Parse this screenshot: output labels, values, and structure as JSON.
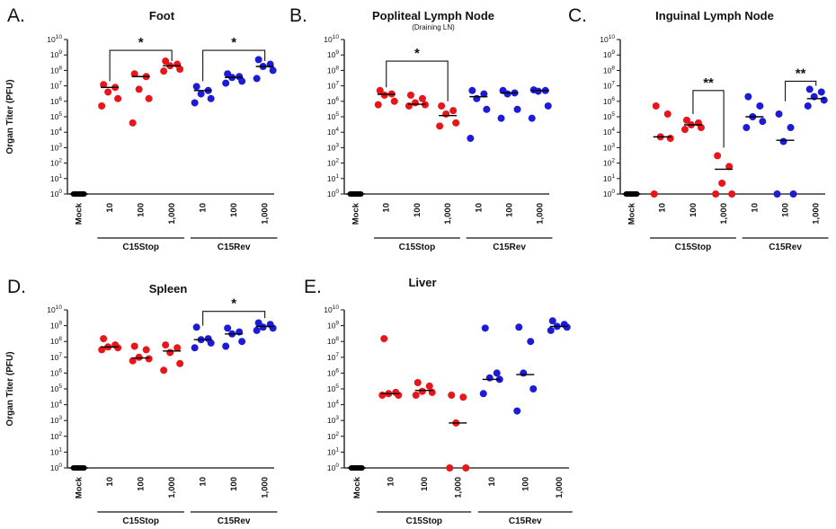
{
  "figure": {
    "colors": {
      "mock": "#000000",
      "C15Stop": "#e8161b",
      "C15Rev": "#1c1cd6",
      "axis": "#111111",
      "median": "#000000"
    },
    "categories": [
      "Mock",
      "10",
      "100",
      "1,000",
      "10",
      "100",
      "1,000"
    ],
    "groups": [
      "C15Stop",
      "C15Rev"
    ],
    "y_axis_label": "Organ Titer (PFU)"
  },
  "chart_data": [
    {
      "type": "scatter",
      "letter": "A.",
      "title": "Foot",
      "subtitle": "",
      "ylabel": "Organ Titer (PFU)",
      "yscale": "log10",
      "ylim": [
        1,
        10000000000
      ],
      "yticks": [
        "10^0",
        "10^1",
        "10^2",
        "10^3",
        "10^4",
        "10^5",
        "10^6",
        "10^7",
        "10^8",
        "10^9",
        "10^10"
      ],
      "categories": [
        "Mock",
        "10",
        "100",
        "1,000",
        "10",
        "100",
        "1,000"
      ],
      "groups": [
        {
          "name": "C15Stop",
          "from": 1,
          "to": 3
        },
        {
          "name": "C15Rev",
          "from": 4,
          "to": 6
        }
      ],
      "series": [
        {
          "name": "Mock",
          "color": "mock",
          "cat": 0,
          "points": [
            1,
            1,
            1,
            1,
            1
          ],
          "median": 1
        },
        {
          "name": "C15Stop 10",
          "color": "C15Stop",
          "cat": 1,
          "points": [
            12000000,
            8000000,
            4000000,
            1500000,
            500000
          ],
          "median": 8000000
        },
        {
          "name": "C15Stop 100",
          "color": "C15Stop",
          "cat": 2,
          "points": [
            60000000,
            40000000,
            6000000,
            1500000,
            40000
          ],
          "median": 40000000
        },
        {
          "name": "C15Stop 1,000",
          "color": "C15Stop",
          "cat": 3,
          "points": [
            400000000,
            250000000,
            200000000,
            120000000,
            90000000
          ],
          "median": 200000000
        },
        {
          "name": "C15Rev 10",
          "color": "C15Rev",
          "cat": 4,
          "points": [
            9000000,
            5000000,
            3000000,
            1500000,
            800000
          ],
          "median": 5000000
        },
        {
          "name": "C15Rev 100",
          "color": "C15Rev",
          "cat": 5,
          "points": [
            60000000,
            40000000,
            35000000,
            20000000,
            15000000
          ],
          "median": 35000000
        },
        {
          "name": "C15Rev 1,000",
          "color": "C15Rev",
          "cat": 6,
          "points": [
            500000000,
            250000000,
            180000000,
            100000000,
            30000000
          ],
          "median": 180000000
        }
      ],
      "annotations": [
        {
          "from": 1,
          "to": 3,
          "label": "*",
          "y": 2000000000,
          "drop_left": 20000000,
          "drop_right": 400000000
        },
        {
          "from": 4,
          "to": 6,
          "label": "*",
          "y": 2000000000,
          "drop_left": 20000000,
          "drop_right": 400000000
        }
      ]
    },
    {
      "type": "scatter",
      "letter": "B.",
      "title": "Popliteal Lymph Node",
      "subtitle": "(Draining LN)",
      "ylabel": "",
      "yscale": "log10",
      "ylim": [
        1,
        10000000000
      ],
      "yticks": [
        "10^0",
        "10^1",
        "10^2",
        "10^3",
        "10^4",
        "10^5",
        "10^6",
        "10^7",
        "10^8",
        "10^9",
        "10^10"
      ],
      "categories": [
        "Mock",
        "10",
        "100",
        "1,000",
        "10",
        "100",
        "1,000"
      ],
      "groups": [
        {
          "name": "C15Stop",
          "from": 1,
          "to": 3
        },
        {
          "name": "C15Rev",
          "from": 4,
          "to": 6
        }
      ],
      "series": [
        {
          "name": "Mock",
          "color": "mock",
          "cat": 0,
          "points": [
            1,
            1,
            1,
            1,
            1
          ],
          "median": 1
        },
        {
          "name": "C15Stop 10",
          "color": "C15Stop",
          "cat": 1,
          "points": [
            5000000,
            3000000,
            2500000,
            1000000,
            600000
          ],
          "median": 2800000
        },
        {
          "name": "C15Stop 100",
          "color": "C15Stop",
          "cat": 2,
          "points": [
            2500000,
            1500000,
            800000,
            600000,
            500000
          ],
          "median": 650000
        },
        {
          "name": "C15Stop 1,000",
          "color": "C15Stop",
          "cat": 3,
          "points": [
            500000,
            250000,
            150000,
            40000,
            25000
          ],
          "median": 120000
        },
        {
          "name": "C15Rev 10",
          "color": "C15Rev",
          "cat": 4,
          "points": [
            5000000,
            3000000,
            1500000,
            300000,
            4000
          ],
          "median": 2000000
        },
        {
          "name": "C15Rev 100",
          "color": "C15Rev",
          "cat": 5,
          "points": [
            5000000,
            3500000,
            3000000,
            300000,
            80000
          ],
          "median": 3500000
        },
        {
          "name": "C15Rev 1,000",
          "color": "C15Rev",
          "cat": 6,
          "points": [
            5500000,
            5000000,
            4500000,
            500000,
            80000
          ],
          "median": 5000000
        }
      ],
      "annotations": [
        {
          "from": 1,
          "to": 3,
          "label": "*",
          "y": 400000000,
          "drop_left": 8000000,
          "drop_right": 1000000
        }
      ]
    },
    {
      "type": "scatter",
      "letter": "C.",
      "title": "Inguinal Lymph Node",
      "subtitle": "",
      "ylabel": "",
      "yscale": "log10",
      "ylim": [
        1,
        10000000000
      ],
      "yticks": [
        "10^0",
        "10^1",
        "10^2",
        "10^3",
        "10^4",
        "10^5",
        "10^6",
        "10^7",
        "10^8",
        "10^9",
        "10^10"
      ],
      "categories": [
        "Mock",
        "10",
        "100",
        "1,000",
        "10",
        "100",
        "1,000"
      ],
      "groups": [
        {
          "name": "C15Stop",
          "from": 1,
          "to": 3
        },
        {
          "name": "C15Rev",
          "from": 4,
          "to": 6
        }
      ],
      "series": [
        {
          "name": "Mock",
          "color": "mock",
          "cat": 0,
          "points": [
            1,
            1,
            1,
            1,
            1
          ],
          "median": 1
        },
        {
          "name": "C15Stop 10",
          "color": "C15Stop",
          "cat": 1,
          "points": [
            500000,
            150000,
            5000,
            4000,
            1
          ],
          "median": 5000
        },
        {
          "name": "C15Stop 100",
          "color": "C15Stop",
          "cat": 2,
          "points": [
            60000,
            40000,
            30000,
            20000,
            15000
          ],
          "median": 30000
        },
        {
          "name": "C15Stop 1,000",
          "color": "C15Stop",
          "cat": 3,
          "points": [
            300,
            60,
            5,
            1,
            1
          ],
          "median": 40
        },
        {
          "name": "C15Rev 10",
          "color": "C15Rev",
          "cat": 4,
          "points": [
            2000000,
            500000,
            100000,
            50000,
            20000
          ],
          "median": 100000
        },
        {
          "name": "C15Rev 100",
          "color": "C15Rev",
          "cat": 5,
          "points": [
            150000,
            20000,
            2500,
            1,
            1
          ],
          "median": 3000
        },
        {
          "name": "C15Rev 1,000",
          "color": "C15Rev",
          "cat": 6,
          "points": [
            6000000,
            4000000,
            2000000,
            1200000,
            500000
          ],
          "median": 1500000
        }
      ],
      "annotations": [
        {
          "from": 2,
          "to": 3,
          "label": "**",
          "y": 5000000,
          "drop_left": 150000,
          "drop_right": 1000
        },
        {
          "from": 5,
          "to": 6,
          "label": "**",
          "y": 20000000,
          "drop_left": 1000000,
          "drop_right": 10000000
        }
      ]
    },
    {
      "type": "scatter",
      "letter": "D.",
      "title": "Spleen",
      "subtitle": "",
      "ylabel": "Organ Titer (PFU)",
      "yscale": "log10",
      "ylim": [
        1,
        10000000000
      ],
      "yticks": [
        "10^0",
        "10^1",
        "10^2",
        "10^3",
        "10^4",
        "10^5",
        "10^6",
        "10^7",
        "10^8",
        "10^9",
        "10^10"
      ],
      "categories": [
        "Mock",
        "10",
        "100",
        "1,000",
        "10",
        "100",
        "1,000"
      ],
      "groups": [
        {
          "name": "C15Stop",
          "from": 1,
          "to": 3
        },
        {
          "name": "C15Rev",
          "from": 4,
          "to": 6
        }
      ],
      "series": [
        {
          "name": "Mock",
          "color": "mock",
          "cat": 0,
          "points": [
            1,
            1,
            1,
            1,
            1
          ],
          "median": 1
        },
        {
          "name": "C15Stop 10",
          "color": "C15Stop",
          "cat": 1,
          "points": [
            150000000,
            60000000,
            45000000,
            40000000,
            30000000
          ],
          "median": 45000000
        },
        {
          "name": "C15Stop 100",
          "color": "C15Stop",
          "cat": 2,
          "points": [
            50000000,
            30000000,
            10000000,
            8000000,
            6000000
          ],
          "median": 9000000
        },
        {
          "name": "C15Stop 1,000",
          "color": "C15Stop",
          "cat": 3,
          "points": [
            60000000,
            40000000,
            20000000,
            4000000,
            1500000
          ],
          "median": 25000000
        },
        {
          "name": "C15Rev 10",
          "color": "C15Rev",
          "cat": 4,
          "points": [
            800000000,
            150000000,
            130000000,
            80000000,
            40000000
          ],
          "median": 130000000
        },
        {
          "name": "C15Rev 100",
          "color": "C15Rev",
          "cat": 5,
          "points": [
            700000000,
            400000000,
            300000000,
            100000000,
            50000000
          ],
          "median": 300000000
        },
        {
          "name": "C15Rev 1,000",
          "color": "C15Rev",
          "cat": 6,
          "points": [
            1500000000,
            1200000000,
            800000000,
            700000000,
            500000000
          ],
          "median": 900000000
        }
      ],
      "annotations": [
        {
          "from": 4,
          "to": 6,
          "label": "*",
          "y": 8000000000,
          "drop_left": 1000000000,
          "drop_right": 3000000000
        }
      ]
    },
    {
      "type": "scatter",
      "letter": "E.",
      "title": "Liver",
      "subtitle": "",
      "ylabel": "",
      "yscale": "log10",
      "ylim": [
        1,
        10000000000
      ],
      "yticks": [
        "10^0",
        "10^1",
        "10^2",
        "10^3",
        "10^4",
        "10^5",
        "10^6",
        "10^7",
        "10^8",
        "10^9",
        "10^10"
      ],
      "categories": [
        "Mock",
        "10",
        "100",
        "1,000",
        "10",
        "100",
        "1,000"
      ],
      "groups": [
        {
          "name": "C15Stop",
          "from": 1,
          "to": 3
        },
        {
          "name": "C15Rev",
          "from": 4,
          "to": 6
        }
      ],
      "series": [
        {
          "name": "Mock",
          "color": "mock",
          "cat": 0,
          "points": [
            1,
            1,
            1,
            1,
            1
          ],
          "median": 1
        },
        {
          "name": "C15Stop 10",
          "color": "C15Stop",
          "cat": 1,
          "points": [
            150000000,
            60000,
            50000,
            40000,
            40000
          ],
          "median": 50000
        },
        {
          "name": "C15Stop 100",
          "color": "C15Stop",
          "cat": 2,
          "points": [
            250000,
            150000,
            70000,
            60000,
            40000
          ],
          "median": 80000
        },
        {
          "name": "C15Stop 1,000",
          "color": "C15Stop",
          "cat": 3,
          "points": [
            40000,
            30000,
            700,
            1,
            1
          ],
          "median": 700
        },
        {
          "name": "C15Rev 10",
          "color": "C15Rev",
          "cat": 4,
          "points": [
            700000000,
            1000000,
            500000,
            400000,
            50000
          ],
          "median": 400000
        },
        {
          "name": "C15Rev 100",
          "color": "C15Rev",
          "cat": 5,
          "points": [
            800000000,
            100000000,
            1000000,
            100000,
            4000
          ],
          "median": 800000
        },
        {
          "name": "C15Rev 1,000",
          "color": "C15Rev",
          "cat": 6,
          "points": [
            2000000000,
            1200000000,
            900000000,
            800000000,
            500000000
          ],
          "median": 900000000
        }
      ],
      "annotations": []
    }
  ]
}
